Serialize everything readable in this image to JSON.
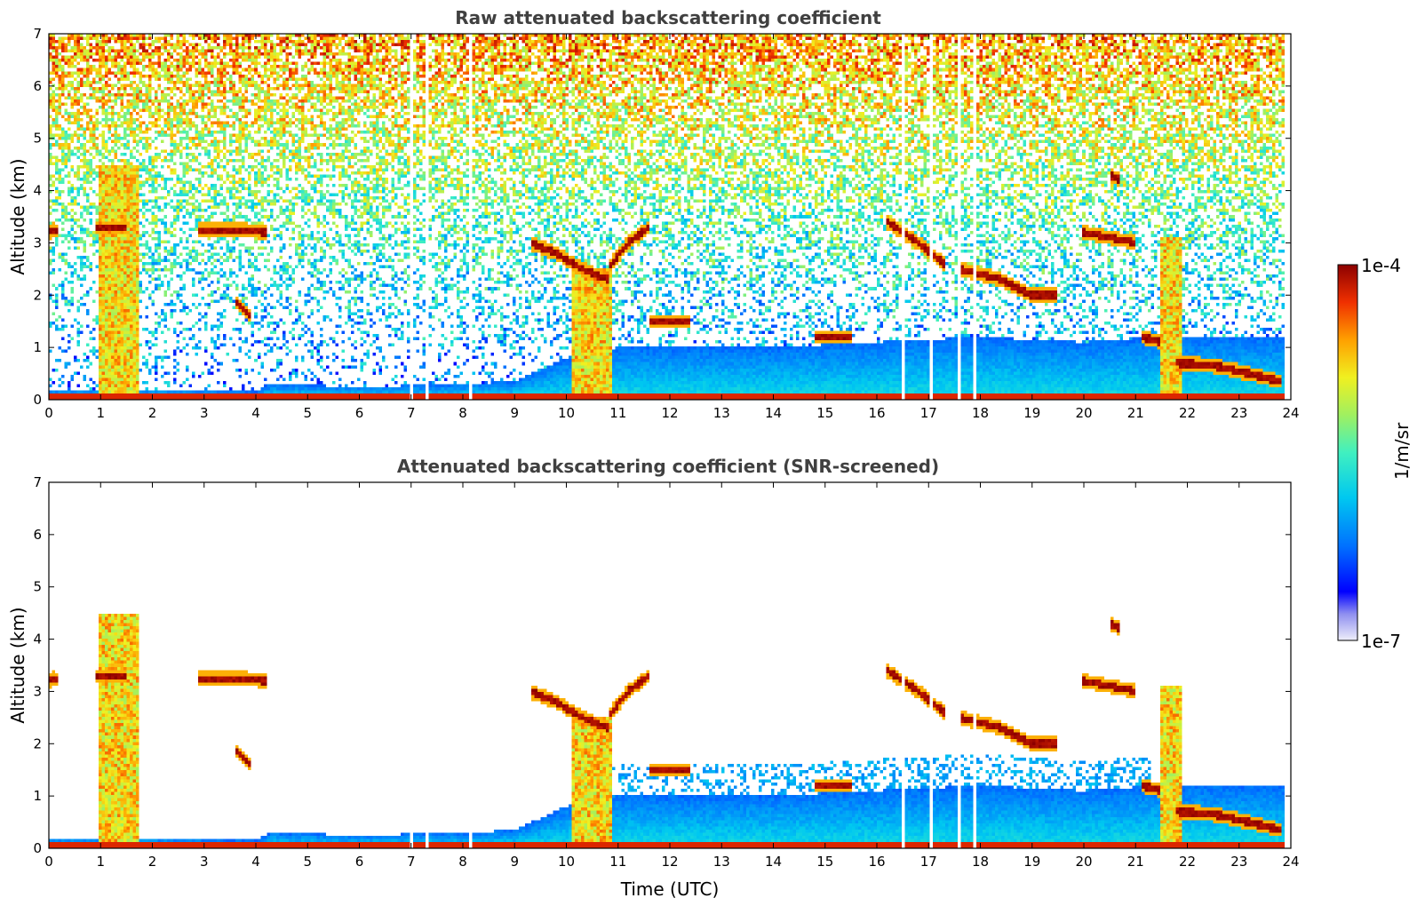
{
  "chart_data": [
    {
      "type": "heatmap",
      "title": "Raw attenuated backscattering coefficient",
      "xlabel": "",
      "ylabel": "Altitude (km)",
      "xlim": [
        0,
        24
      ],
      "ylim": [
        0,
        7
      ],
      "xticks": [
        "0",
        "1",
        "2",
        "3",
        "4",
        "5",
        "6",
        "7",
        "8",
        "9",
        "10",
        "11",
        "12",
        "13",
        "14",
        "15",
        "16",
        "17",
        "18",
        "19",
        "20",
        "21",
        "22",
        "23",
        "24"
      ],
      "yticks": [
        "0",
        "1",
        "2",
        "3",
        "4",
        "5",
        "6",
        "7"
      ],
      "data_gaps_utc": [
        7.0,
        7.1,
        7.3,
        7.45,
        8.15,
        8.55,
        16.5,
        17.05,
        17.6,
        17.9,
        18.1
      ],
      "features": [
        {
          "kind": "boundary_layer",
          "x": [
            0,
            2,
            4,
            4.3,
            6,
            8,
            9,
            10,
            11,
            14,
            16,
            18,
            20,
            21.4
          ],
          "top_km": [
            0.2,
            0.2,
            0.15,
            0.3,
            0.25,
            0.3,
            0.35,
            0.8,
            1.0,
            1.0,
            1.1,
            1.2,
            1.1,
            1.2
          ]
        },
        {
          "kind": "cloud_layer",
          "x": [
            0,
            0.1,
            0.2
          ],
          "alt_km": [
            3.2,
            3.25,
            3.2
          ]
        },
        {
          "kind": "cloud_layer",
          "x": [
            0.9,
            1.2,
            1.5
          ],
          "alt_km": [
            3.3,
            3.3,
            3.3
          ]
        },
        {
          "kind": "cloud_layer",
          "x": [
            2.9,
            3.3,
            3.8,
            4.2
          ],
          "alt_km": [
            3.25,
            3.25,
            3.25,
            3.2
          ]
        },
        {
          "kind": "cloud_layer",
          "x": [
            3.6,
            3.9
          ],
          "alt_km": [
            1.9,
            1.6
          ]
        },
        {
          "kind": "cloud_layer",
          "x": [
            9.3,
            9.8,
            10.3,
            10.8
          ],
          "alt_km": [
            3.0,
            2.8,
            2.5,
            2.3
          ]
        },
        {
          "kind": "cloud_layer",
          "x": [
            10.8,
            11.2,
            11.6
          ],
          "alt_km": [
            2.5,
            3.0,
            3.3
          ]
        },
        {
          "kind": "cloud_layer",
          "x": [
            11.6,
            12.0,
            12.4
          ],
          "alt_km": [
            1.5,
            1.5,
            1.5
          ]
        },
        {
          "kind": "cloud_layer",
          "x": [
            14.8,
            15.2,
            15.5
          ],
          "alt_km": [
            1.2,
            1.2,
            1.2
          ]
        },
        {
          "kind": "cloud_layer",
          "x": [
            16.2,
            16.8,
            17.3
          ],
          "alt_km": [
            3.4,
            3.0,
            2.6
          ]
        },
        {
          "kind": "cloud_layer",
          "x": [
            17.6,
            18.4,
            19.0,
            19.5
          ],
          "alt_km": [
            2.5,
            2.3,
            2.0,
            2.0
          ]
        },
        {
          "kind": "cloud_layer",
          "x": [
            20.0,
            20.5,
            21.0
          ],
          "alt_km": [
            3.2,
            3.1,
            3.0
          ]
        },
        {
          "kind": "cloud_layer",
          "x": [
            20.5,
            20.7
          ],
          "alt_km": [
            4.3,
            4.2
          ]
        },
        {
          "kind": "cloud_layer",
          "x": [
            21.1,
            21.5
          ],
          "alt_km": [
            1.2,
            1.1
          ]
        },
        {
          "kind": "cloud_layer",
          "x": [
            21.8,
            22.5,
            23.2,
            23.8
          ],
          "alt_km": [
            0.7,
            0.65,
            0.5,
            0.35
          ]
        },
        {
          "kind": "dense_column",
          "x0": 0.95,
          "x1": 1.75,
          "top_km": 4.5
        },
        {
          "kind": "dense_column",
          "x0": 10.1,
          "x1": 10.9,
          "top_km": 2.5
        },
        {
          "kind": "dense_column",
          "x0": 21.5,
          "x1": 21.9,
          "top_km": 3.1
        }
      ]
    },
    {
      "type": "heatmap",
      "title": "Attenuated backscattering coefficient (SNR-screened)",
      "xlabel": "Time (UTC)",
      "ylabel": "Altitude (km)",
      "xlim": [
        0,
        24
      ],
      "ylim": [
        0,
        7
      ],
      "xticks": [
        "0",
        "1",
        "2",
        "3",
        "4",
        "5",
        "6",
        "7",
        "8",
        "9",
        "10",
        "11",
        "12",
        "13",
        "14",
        "15",
        "16",
        "17",
        "18",
        "19",
        "20",
        "21",
        "22",
        "23",
        "24"
      ],
      "yticks": [
        "0",
        "1",
        "2",
        "3",
        "4",
        "5",
        "6",
        "7"
      ],
      "screened": true
    }
  ],
  "colorbar": {
    "label": "1/m/sr",
    "max_label": "1e-4",
    "min_label": "1e-7",
    "scale": "log",
    "range": [
      1e-07,
      0.0001
    ],
    "colors": [
      "#e8e8f8",
      "#b0b0f0",
      "#6060f0",
      "#0000ff",
      "#0060ff",
      "#00b0ff",
      "#20e0e0",
      "#60f0a0",
      "#a0f060",
      "#f0f020",
      "#ffb000",
      "#ff6000",
      "#e81000",
      "#a00000"
    ]
  }
}
